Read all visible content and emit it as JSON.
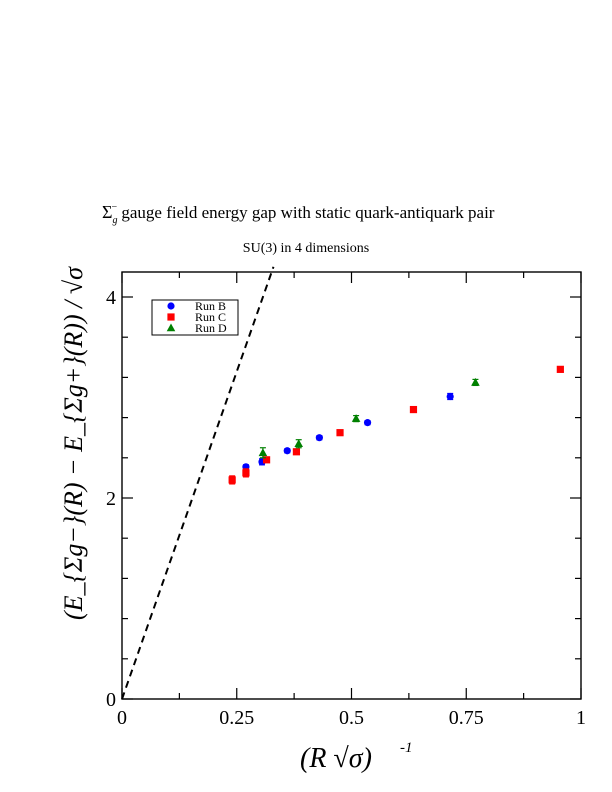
{
  "title": {
    "symbol": "Σ",
    "symbol_sub": "g",
    "symbol_sup": "−",
    "text": " gauge field energy gap with static quark-antiquark pair"
  },
  "subtitle": "SU(3) in 4 dimensions",
  "chart_data": {
    "type": "scatter",
    "xlabel": "(R √σ)",
    "xlabel_exponent": "-1",
    "ylabel": "(E_{Σg−}(R) − E_{Σg+}(R)) / √σ",
    "xlim": [
      0,
      1
    ],
    "ylim": [
      0,
      4.3
    ],
    "x_ticks": [
      0,
      0.25,
      0.5,
      0.75,
      1
    ],
    "x_tick_labels": [
      "0",
      "0.25",
      "0.5",
      "0.75",
      "1"
    ],
    "y_ticks": [
      0,
      2,
      4
    ],
    "y_tick_labels": [
      "0",
      "2",
      "4"
    ],
    "grid": false,
    "legend_position": "top-left",
    "series": [
      {
        "name": "Run B",
        "color": "#0000ff",
        "marker": "circle",
        "x": [
          0.27,
          0.305,
          0.36,
          0.43,
          0.535,
          0.715
        ],
        "y": [
          2.31,
          2.36,
          2.47,
          2.6,
          2.75,
          3.01
        ],
        "err": [
          0.02,
          0.03,
          0.02,
          0.02,
          0.02,
          0.03
        ]
      },
      {
        "name": "Run C",
        "color": "#ff0000",
        "marker": "square",
        "x": [
          0.24,
          0.27,
          0.315,
          0.38,
          0.475,
          0.635,
          0.955
        ],
        "y": [
          2.18,
          2.25,
          2.38,
          2.46,
          2.65,
          2.88,
          3.28
        ],
        "err": [
          0.04,
          0.04,
          0.02,
          0.02,
          0.02,
          0.02,
          0.02
        ]
      },
      {
        "name": "Run D",
        "color": "#008000",
        "marker": "triangle",
        "x": [
          0.307,
          0.385,
          0.51,
          0.77
        ],
        "y": [
          2.45,
          2.54,
          2.79,
          3.15
        ],
        "err": [
          0.05,
          0.04,
          0.03,
          0.03
        ]
      }
    ],
    "reference_line": {
      "style": "dashed",
      "from": [
        0,
        0
      ],
      "to": [
        0.33,
        4.3
      ]
    }
  }
}
